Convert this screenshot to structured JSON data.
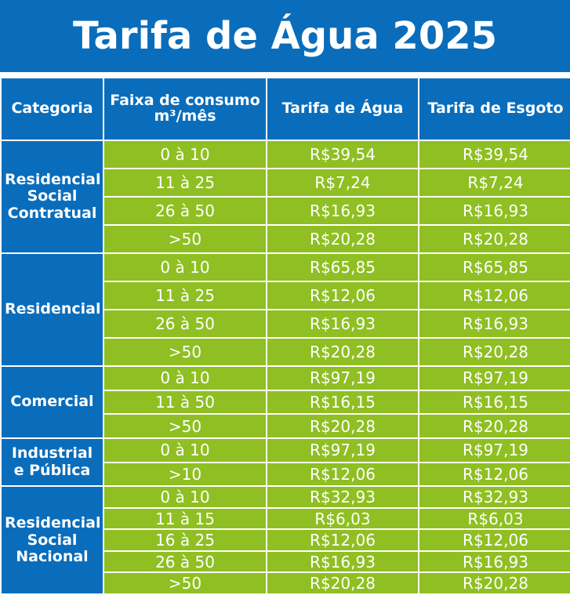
{
  "title": "Tarifa de Água 2025",
  "colors": {
    "header_blue": "#0a6dbb",
    "cell_green": "#8fbf22",
    "text": "#ffffff"
  },
  "headers": {
    "categoria": "Categoria",
    "faixa": "Faixa de consumo m³/mês",
    "agua": "Tarifa de Água",
    "esgoto": "Tarifa de Esgoto"
  },
  "groups": [
    {
      "categoria": "Residencial\nSocial\nContratual",
      "rows": [
        {
          "faixa": "0 à 10",
          "agua": "R$39,54",
          "esgoto": "R$39,54"
        },
        {
          "faixa": "11 à 25",
          "agua": "R$7,24",
          "esgoto": "R$7,24"
        },
        {
          "faixa": "26 à 50",
          "agua": "R$16,93",
          "esgoto": "R$16,93"
        },
        {
          "faixa": ">50",
          "agua": "R$20,28",
          "esgoto": "R$20,28"
        }
      ]
    },
    {
      "categoria": "Residencial",
      "rows": [
        {
          "faixa": "0 à 10",
          "agua": "R$65,85",
          "esgoto": "R$65,85"
        },
        {
          "faixa": "11 à 25",
          "agua": "R$12,06",
          "esgoto": "R$12,06"
        },
        {
          "faixa": "26 à 50",
          "agua": "R$16,93",
          "esgoto": "R$16,93"
        },
        {
          "faixa": ">50",
          "agua": "R$20,28",
          "esgoto": "R$20,28"
        }
      ]
    },
    {
      "categoria": "Comercial",
      "rows": [
        {
          "faixa": "0 à 10",
          "agua": "R$97,19",
          "esgoto": "R$97,19"
        },
        {
          "faixa": "11 à 50",
          "agua": "R$16,15",
          "esgoto": "R$16,15"
        },
        {
          "faixa": ">50",
          "agua": "R$20,28",
          "esgoto": "R$20,28"
        }
      ]
    },
    {
      "categoria": "Industrial\ne Pública",
      "rows": [
        {
          "faixa": "0 à 10",
          "agua": "R$97,19",
          "esgoto": "R$97,19"
        },
        {
          "faixa": ">10",
          "agua": "R$12,06",
          "esgoto": "R$12,06"
        }
      ]
    },
    {
      "categoria": "Residencial\nSocial\nNacional",
      "rows": [
        {
          "faixa": "0 à 10",
          "agua": "R$32,93",
          "esgoto": "R$32,93"
        },
        {
          "faixa": "11 à 15",
          "agua": "R$6,03",
          "esgoto": "R$6,03"
        },
        {
          "faixa": "16 à 25",
          "agua": "R$12,06",
          "esgoto": "R$12,06"
        },
        {
          "faixa": "26 à 50",
          "agua": "R$16,93",
          "esgoto": "R$16,93"
        },
        {
          "faixa": ">50",
          "agua": "R$20,28",
          "esgoto": "R$20,28"
        }
      ]
    }
  ]
}
